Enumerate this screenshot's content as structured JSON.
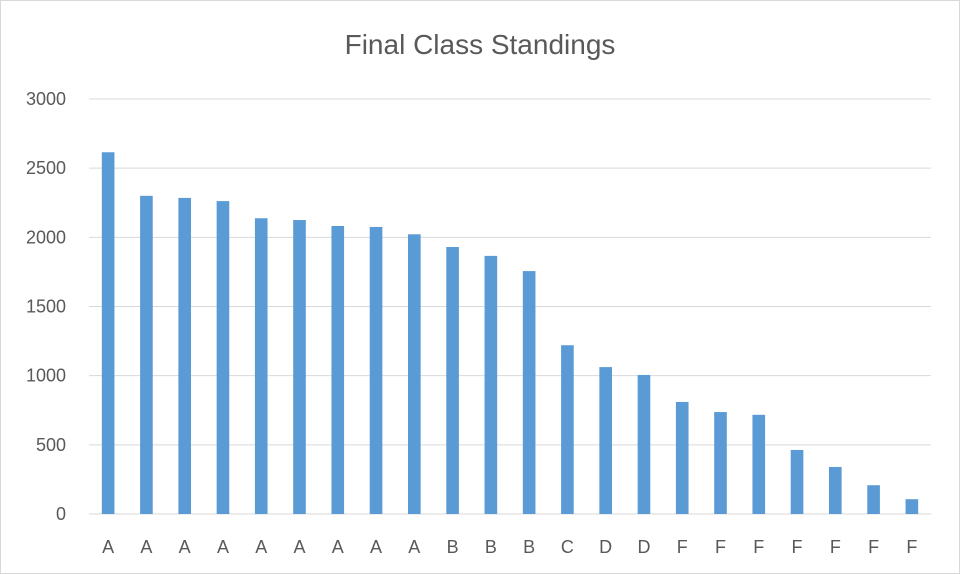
{
  "chart_data": {
    "type": "bar",
    "title": "Final Class Standings",
    "xlabel": "",
    "ylabel": "",
    "categories": [
      "A",
      "A",
      "A",
      "A",
      "A",
      "A",
      "A",
      "A",
      "A",
      "B",
      "B",
      "B",
      "C",
      "D",
      "D",
      "F",
      "F",
      "F",
      "F",
      "F",
      "F",
      "F"
    ],
    "values": [
      2615,
      2300,
      2285,
      2262,
      2138,
      2125,
      2082,
      2075,
      2022,
      1930,
      1866,
      1756,
      1220,
      1062,
      1005,
      810,
      737,
      717,
      463,
      340,
      208,
      107
    ],
    "ylim": [
      0,
      3000
    ],
    "yticks": [
      0,
      500,
      1000,
      1500,
      2000,
      2500,
      3000
    ],
    "grid": true,
    "legend": "none",
    "colors": {
      "bar": "#5b9bd5",
      "grid": "#d9d9d9",
      "axis": "#d9d9d9",
      "text": "#595959"
    }
  }
}
